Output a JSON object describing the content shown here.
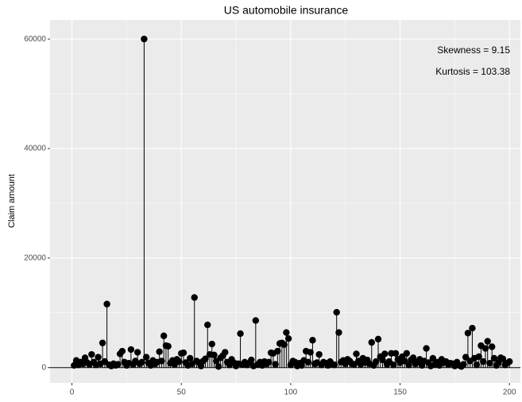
{
  "chart_data": {
    "type": "lollipop",
    "title": "US automobile insurance",
    "y_label": "Claim amount",
    "annotations": [
      "Skewness = 9.15",
      "Kurtosis = 103.38"
    ],
    "color": "#000000",
    "grid": true,
    "xlim": [
      -10,
      205
    ],
    "ylim": [
      -2800,
      63500
    ],
    "xticks": [
      0,
      50,
      100,
      150,
      200
    ],
    "yticks": [
      0,
      20000,
      40000,
      60000
    ],
    "x": [
      1,
      2,
      3,
      4,
      5,
      6,
      7,
      8,
      9,
      10,
      11,
      12,
      13,
      14,
      15,
      16,
      17,
      18,
      19,
      20,
      21,
      22,
      23,
      24,
      25,
      26,
      27,
      28,
      29,
      30,
      31,
      32,
      33,
      34,
      35,
      36,
      37,
      38,
      39,
      40,
      41,
      42,
      43,
      44,
      45,
      46,
      47,
      48,
      49,
      50,
      51,
      52,
      53,
      54,
      55,
      56,
      57,
      58,
      59,
      60,
      61,
      62,
      63,
      64,
      65,
      66,
      67,
      68,
      69,
      70,
      71,
      72,
      73,
      74,
      75,
      76,
      77,
      78,
      79,
      80,
      81,
      82,
      83,
      84,
      85,
      86,
      87,
      88,
      89,
      90,
      91,
      92,
      93,
      94,
      95,
      96,
      97,
      98,
      99,
      100,
      101,
      102,
      103,
      104,
      105,
      106,
      107,
      108,
      109,
      110,
      111,
      112,
      113,
      114,
      115,
      116,
      117,
      118,
      119,
      120,
      121,
      122,
      123,
      124,
      125,
      126,
      127,
      128,
      129,
      130,
      131,
      132,
      133,
      134,
      135,
      136,
      137,
      138,
      139,
      140,
      141,
      142,
      143,
      144,
      145,
      146,
      147,
      148,
      149,
      150,
      151,
      152,
      153,
      154,
      155,
      156,
      157,
      158,
      159,
      160,
      161,
      162,
      163,
      164,
      165,
      166,
      167,
      168,
      169,
      170,
      171,
      172,
      173,
      174,
      175,
      176,
      177,
      178,
      179,
      180,
      181,
      182,
      183,
      184,
      185,
      186,
      187,
      188,
      189,
      190,
      191,
      192,
      193,
      194,
      195,
      196,
      197,
      198,
      199,
      200
    ],
    "values": [
      400,
      1300,
      500,
      1000,
      700,
      1800,
      900,
      600,
      2400,
      1000,
      500,
      1900,
      700,
      4500,
      1100,
      11600,
      500,
      300,
      700,
      400,
      600,
      2500,
      3000,
      1000,
      400,
      800,
      3300,
      600,
      1200,
      2800,
      700,
      1000,
      60000,
      1900,
      800,
      400,
      1300,
      700,
      1000,
      2900,
      1200,
      5800,
      4000,
      3900,
      800,
      1300,
      600,
      1500,
      1100,
      2600,
      2700,
      900,
      400,
      1700,
      700,
      12800,
      1200,
      900,
      300,
      1200,
      1600,
      7800,
      2400,
      4300,
      2300,
      1200,
      200,
      1800,
      2200,
      2800,
      1000,
      500,
      1500,
      900,
      300,
      700,
      6200,
      600,
      1000,
      500,
      800,
      1400,
      300,
      8600,
      600,
      1000,
      400,
      1100,
      700,
      1000,
      2700,
      2600,
      600,
      3000,
      4400,
      4500,
      4200,
      6400,
      5300,
      500,
      1200,
      1000,
      300,
      800,
      400,
      1300,
      3000,
      1000,
      2800,
      5000,
      700,
      900,
      2400,
      500,
      1000,
      800,
      400,
      1100,
      600,
      500,
      10100,
      6400,
      1000,
      1300,
      700,
      1500,
      1200,
      700,
      600,
      2500,
      1200,
      600,
      1700,
      900,
      1400,
      700,
      4600,
      400,
      1100,
      5200,
      2000,
      1400,
      2500,
      600,
      1100,
      2600,
      500,
      2600,
      1500,
      900,
      2000,
      1200,
      2600,
      500,
      1400,
      1800,
      700,
      1000,
      1500,
      400,
      1200,
      3500,
      900,
      300,
      1700,
      600,
      1000,
      400,
      1500,
      900,
      1100,
      600,
      800,
      700,
      300,
      1000,
      400,
      200,
      600,
      1900,
      6300,
      1200,
      7200,
      1700,
      500,
      2000,
      4000,
      1100,
      3500,
      4800,
      800,
      3800,
      1700,
      400,
      900,
      1800,
      1600,
      500,
      800,
      1100
    ]
  }
}
